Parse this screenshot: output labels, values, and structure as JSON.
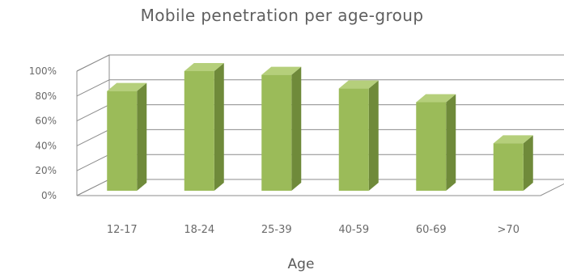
{
  "chart_data": {
    "type": "bar",
    "title": "Mobile penetration per age-group",
    "xlabel": "Age",
    "ylabel": "",
    "categories": [
      "12-17",
      "18-24",
      "25-39",
      "40-59",
      "60-69",
      ">70"
    ],
    "values": [
      84,
      100,
      97,
      86,
      75,
      42
    ],
    "ylim": [
      0,
      100
    ],
    "yticks": [
      "0%",
      "20%",
      "40%",
      "60%",
      "80%",
      "100%"
    ],
    "grid": true,
    "legend": "none",
    "style": "3d-column"
  },
  "colors": {
    "bar_front": "#9bbb59",
    "bar_side": "#6f8a3a",
    "bar_top": "#b5cf7b",
    "gridline": "#8c8c8c",
    "text": "#6a6a6a"
  }
}
